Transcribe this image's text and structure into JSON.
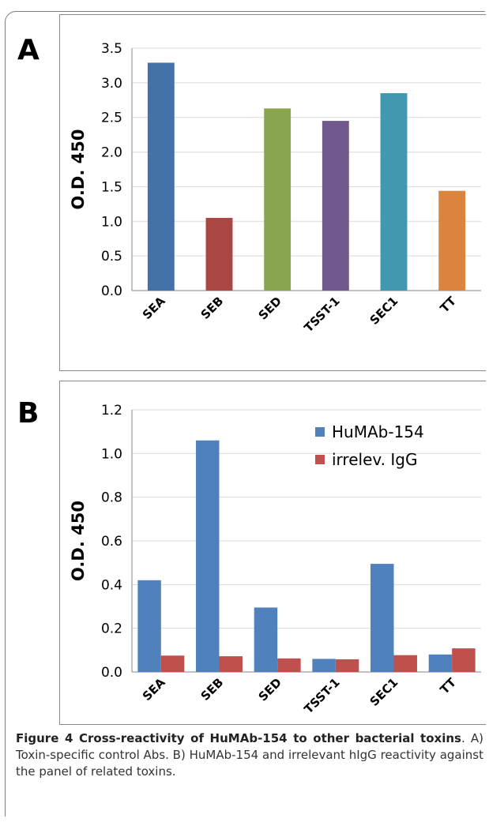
{
  "figure": {
    "panel_a_letter": "A",
    "panel_b_letter": "B",
    "caption_bold": "Figure 4 Cross-reactivity of HuMAb-154 to other bacterial toxins",
    "caption_rest": ". A) Toxin-specific control Abs. B) HuMAb-154 and irrelevant hIgG reactivity against the panel of related toxins."
  },
  "chart_data": [
    {
      "type": "bar",
      "categories": [
        "SEA",
        "SEB",
        "SED",
        "TSST-1",
        "SEC1",
        "TT"
      ],
      "values": [
        3.29,
        1.05,
        2.63,
        2.45,
        2.85,
        1.44
      ],
      "colors": [
        "#4471a7",
        "#aa4643",
        "#89a54e",
        "#71588f",
        "#4198af",
        "#db843d"
      ],
      "ylabel": "O.D. 450",
      "ylim": [
        0,
        3.5
      ],
      "yticks": [
        "0.0",
        "0.5",
        "1.0",
        "1.5",
        "2.0",
        "2.5",
        "3.0",
        "3.5"
      ],
      "grid": true
    },
    {
      "type": "bar",
      "categories": [
        "SEA",
        "SEB",
        "SED",
        "TSST-1",
        "SEC1",
        "TT"
      ],
      "series": [
        {
          "name": "HuMAb-154",
          "color": "#4f81bd",
          "values": [
            0.42,
            1.06,
            0.295,
            0.06,
            0.495,
            0.08
          ]
        },
        {
          "name": "irrelev. IgG",
          "color": "#c0504d",
          "values": [
            0.075,
            0.072,
            0.062,
            0.058,
            0.077,
            0.108
          ]
        }
      ],
      "ylabel": "O.D. 450",
      "ylim": [
        0,
        1.2
      ],
      "yticks": [
        "0.0",
        "0.2",
        "0.4",
        "0.6",
        "0.8",
        "1.0",
        "1.2"
      ],
      "grid": true,
      "legend": "top-right"
    }
  ]
}
